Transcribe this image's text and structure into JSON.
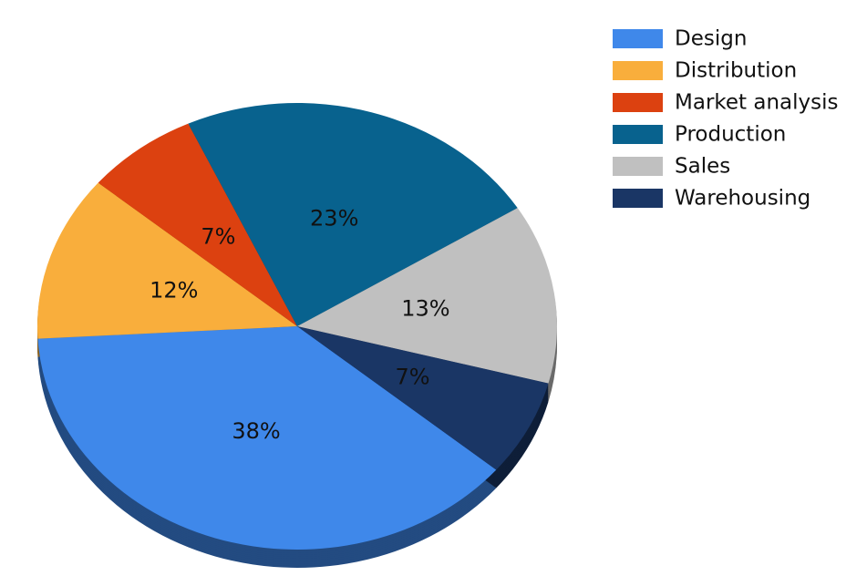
{
  "chart_data": {
    "type": "pie",
    "categories": [
      "Design",
      "Distribution",
      "Market analysis",
      "Production",
      "Sales",
      "Warehousing"
    ],
    "values": [
      38,
      12,
      7,
      23,
      13,
      7
    ],
    "value_labels": [
      "38%",
      "12%",
      "7%",
      "23%",
      "13%",
      "7%"
    ],
    "colors": [
      "#3f88ea",
      "#f9ae3c",
      "#dc4110",
      "#08628e",
      "#c0c0c0",
      "#1a3665"
    ],
    "legend": "top-right"
  }
}
